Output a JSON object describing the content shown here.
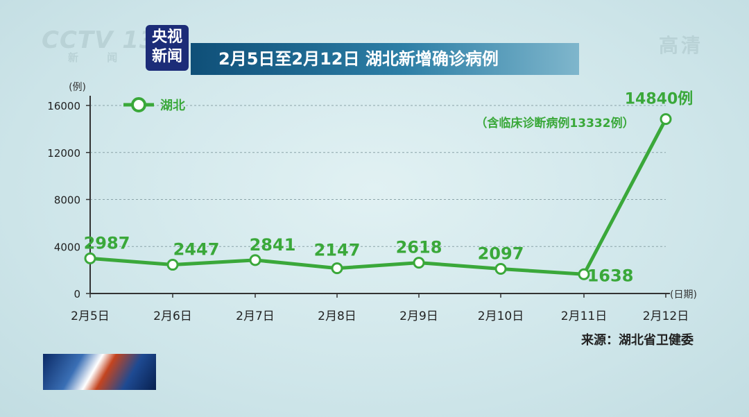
{
  "brand": {
    "logo": "CCTV 13",
    "sub": "新 闻",
    "hd_label": "高清"
  },
  "badge": {
    "line1": "央视",
    "line2": "新闻"
  },
  "title": "2月5日至2月12日 湖北新增确诊病例",
  "source": "来源：湖北省卫健委",
  "chart_data": {
    "type": "line",
    "title": "2月5日至2月12日 湖北新增确诊病例",
    "ylabel": "(例)",
    "xlabel": "(日期)",
    "ylim": [
      0,
      16000
    ],
    "yticks": [
      0,
      4000,
      8000,
      12000,
      16000
    ],
    "grid": true,
    "legend_position": "top-left",
    "categories": [
      "2月5日",
      "2月6日",
      "2月7日",
      "2月8日",
      "2月9日",
      "2月10日",
      "2月11日",
      "2月12日"
    ],
    "series": [
      {
        "name": "湖北",
        "color": "#3aa83a",
        "values": [
          2987,
          2447,
          2841,
          2147,
          2618,
          2097,
          1638,
          14840
        ],
        "labels": [
          "2987",
          "2447",
          "2841",
          "2147",
          "2618",
          "2097",
          "1638",
          "14840例"
        ]
      }
    ],
    "annotation": "（含临床诊断病例13332例）"
  }
}
